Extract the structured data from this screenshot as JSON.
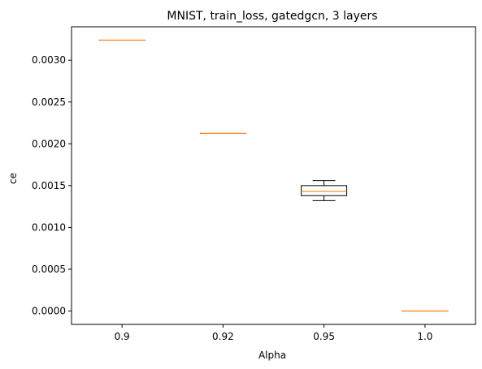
{
  "chart_data": {
    "type": "box",
    "title": "MNIST, train_loss, gatedgcn, 3 layers",
    "xlabel": "Alpha",
    "ylabel": "ce",
    "categories": [
      "0.9",
      "0.92",
      "0.95",
      "1.0"
    ],
    "boxes": [
      {
        "category": "0.9",
        "whisker_low": 0.00324,
        "q1": 0.00324,
        "median": 0.00324,
        "q3": 0.00324,
        "whisker_high": 0.00324
      },
      {
        "category": "0.92",
        "whisker_low": 0.002125,
        "q1": 0.002125,
        "median": 0.002125,
        "q3": 0.002125,
        "whisker_high": 0.002125
      },
      {
        "category": "0.95",
        "whisker_low": 0.00132,
        "q1": 0.00138,
        "median": 0.00143,
        "q3": 0.0015,
        "whisker_high": 0.00156
      },
      {
        "category": "1.0",
        "whisker_low": 0.0,
        "q1": 0.0,
        "median": 0.0,
        "q3": 0.0,
        "whisker_high": 0.0
      }
    ],
    "ylim": [
      -0.00016,
      0.0034
    ],
    "yticks": [
      0,
      0.0005,
      0.001,
      0.0015,
      0.002,
      0.0025,
      0.003
    ],
    "ytick_labels": [
      "0.0000",
      "0.0005",
      "0.0010",
      "0.0015",
      "0.0020",
      "0.0025",
      "0.0030"
    ],
    "grid": false,
    "colors": {
      "box": "#000000",
      "median": "#ff7f0e",
      "background": "#ffffff"
    }
  }
}
